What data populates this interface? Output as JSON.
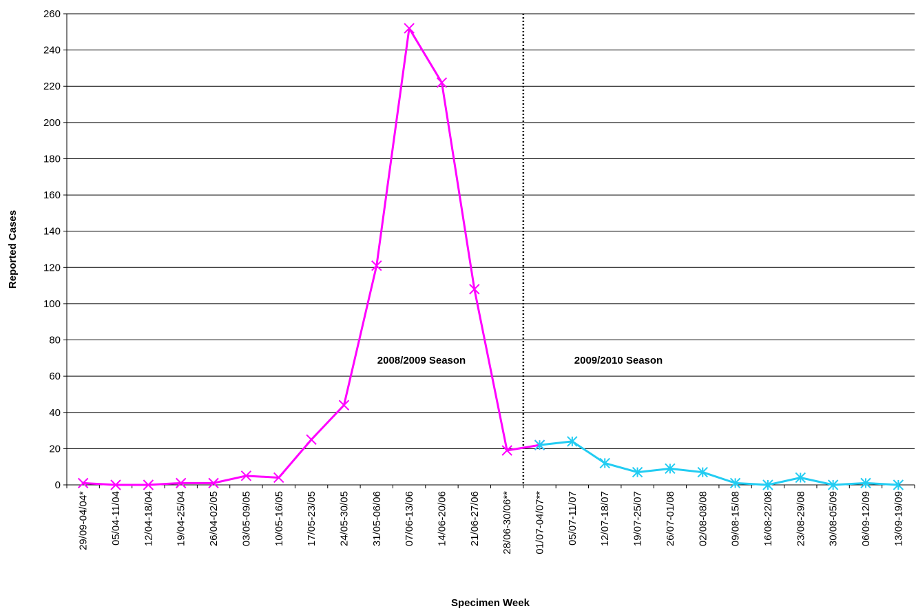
{
  "chart_data": {
    "type": "line",
    "xlabel": "Specimen Week",
    "ylabel": "Reported Cases",
    "annotations": [
      "2008/2009 Season",
      "2009/2010 Season"
    ],
    "categories": [
      "29/09-04/04*",
      "05/04-11/04",
      "12/04-18/04",
      "19/04-25/04",
      "26/04-02/05",
      "03/05-09/05",
      "10/05-16/05",
      "17/05-23/05",
      "24/05-30/05",
      "31/05-06/06",
      "07/06-13/06",
      "14/06-20/06",
      "21/06-27/06",
      "28/06-30/06**",
      "01/07-04/07**",
      "05/07-11/07",
      "12/07-18/07",
      "19/07-25/07",
      "26/07-01/08",
      "02/08-08/08",
      "09/08-15/08",
      "16/08-22/08",
      "23/08-29/08",
      "30/08-05/09",
      "06/09-12/09",
      "13/09-19/09"
    ],
    "series": [
      {
        "color": "#ff00ff",
        "marker": "x",
        "values": [
          1,
          0,
          0,
          1,
          1,
          5,
          4,
          25,
          44,
          121,
          252,
          222,
          108,
          19,
          22,
          null,
          null,
          null,
          null,
          null,
          null,
          null,
          null,
          null,
          null,
          null
        ]
      },
      {
        "color": "#22ccf2",
        "marker": "star",
        "values": [
          null,
          null,
          null,
          null,
          null,
          null,
          null,
          null,
          null,
          null,
          null,
          null,
          null,
          null,
          22,
          24,
          12,
          7,
          9,
          7,
          1,
          0,
          4,
          0,
          1,
          0
        ]
      }
    ],
    "ylim": [
      0,
      260
    ],
    "yticks": [
      0,
      20,
      40,
      60,
      80,
      100,
      120,
      140,
      160,
      180,
      200,
      220,
      240,
      260
    ],
    "grid": true
  }
}
